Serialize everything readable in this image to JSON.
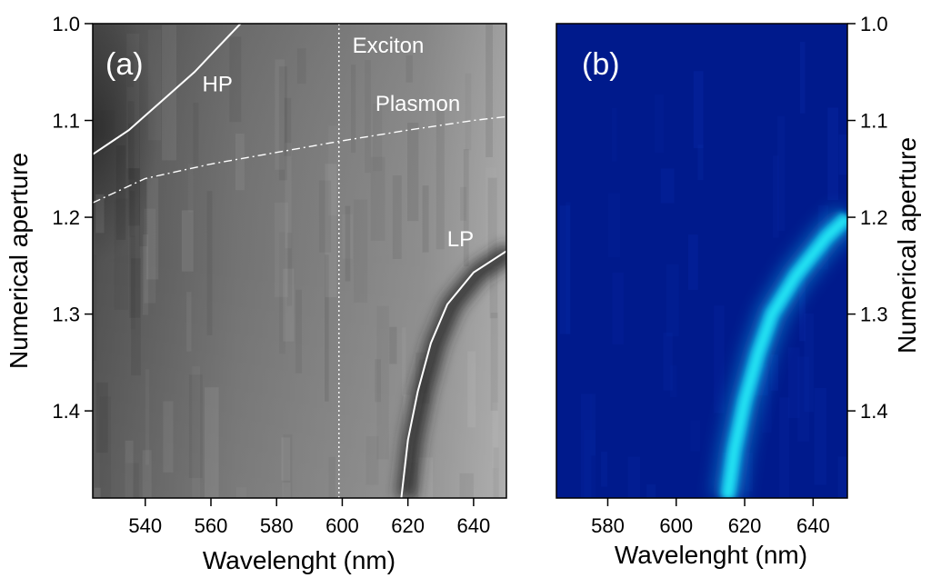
{
  "chart_data": [
    {
      "panel_label": "(a)",
      "type": "heatmap",
      "colormap": "grayscale",
      "xlabel": "Wavelenght (nm)",
      "ylabel": "Numerical aperture",
      "xlim": [
        524,
        650
      ],
      "ylim": [
        1.0,
        1.49
      ],
      "y_inverted": true,
      "xticks": [
        540,
        560,
        580,
        600,
        620,
        640
      ],
      "yticks": [
        1.0,
        1.1,
        1.2,
        1.3,
        1.4
      ],
      "xtick_labels": [
        "540",
        "560",
        "580",
        "600",
        "620",
        "640"
      ],
      "ytick_labels": [
        "1.0",
        "1.1",
        "1.2",
        "1.3",
        "1.4"
      ],
      "annotations": [
        {
          "text": "HP",
          "x": 562,
          "y": 1.07
        },
        {
          "text": "Exciton",
          "x": 614,
          "y": 1.03
        },
        {
          "text": "Plasmon",
          "x": 623,
          "y": 1.09
        },
        {
          "text": "LP",
          "x": 636,
          "y": 1.23
        }
      ],
      "series": [
        {
          "name": "Exciton",
          "style": "dotted",
          "points": [
            [
              599,
              1.0
            ],
            [
              599,
              1.49
            ]
          ]
        },
        {
          "name": "Plasmon",
          "style": "dash-dot",
          "points": [
            [
              524,
              1.185
            ],
            [
              540,
              1.16
            ],
            [
              560,
              1.145
            ],
            [
              580,
              1.133
            ],
            [
              600,
              1.121
            ],
            [
              620,
              1.11
            ],
            [
              640,
              1.1
            ],
            [
              650,
              1.096
            ]
          ]
        },
        {
          "name": "HP",
          "style": "solid",
          "points": [
            [
              524,
              1.135
            ],
            [
              535,
              1.11
            ],
            [
              545,
              1.08
            ],
            [
              555,
              1.05
            ],
            [
              562,
              1.025
            ],
            [
              569,
              1.0
            ]
          ]
        },
        {
          "name": "LP",
          "style": "solid",
          "points": [
            [
              618,
              1.49
            ],
            [
              620,
              1.43
            ],
            [
              623,
              1.38
            ],
            [
              627,
              1.33
            ],
            [
              632,
              1.29
            ],
            [
              640,
              1.257
            ],
            [
              650,
              1.235
            ]
          ]
        }
      ]
    },
    {
      "panel_label": "(b)",
      "type": "heatmap",
      "colormap": "dark blue to cyan",
      "xlabel": "Wavelenght (nm)",
      "ylabel": "Numerical aperture",
      "ylabel_side": "right",
      "xlim": [
        565,
        650
      ],
      "ylim": [
        1.0,
        1.49
      ],
      "y_inverted": true,
      "xticks": [
        580,
        600,
        620,
        640
      ],
      "yticks": [
        1.0,
        1.1,
        1.2,
        1.3,
        1.4
      ],
      "xtick_labels": [
        "580",
        "600",
        "620",
        "640"
      ],
      "ytick_labels": [
        "1.0",
        "1.1",
        "1.2",
        "1.3",
        "1.4"
      ],
      "series": [
        {
          "name": "intensity ridge",
          "points": [
            [
              615,
              1.49
            ],
            [
              617,
              1.44
            ],
            [
              620,
              1.39
            ],
            [
              624,
              1.34
            ],
            [
              628,
              1.3
            ],
            [
              635,
              1.26
            ],
            [
              644,
              1.22
            ],
            [
              650,
              1.2
            ]
          ]
        }
      ]
    }
  ],
  "colors": {
    "gray_dark": "#3a3a3a",
    "gray_mid": "#6e6e6e",
    "gray_light": "#9a9a9a",
    "blue_background": "#001a8c",
    "cyan_peak": "#16e6f0"
  }
}
